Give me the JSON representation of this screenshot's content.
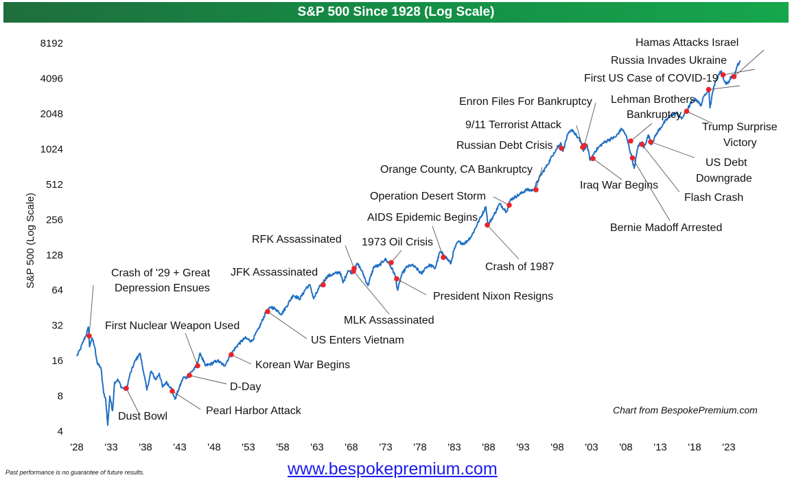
{
  "header": {
    "title": "S&P 500 Since 1928 (Log Scale)"
  },
  "footer": {
    "disclaimer": "Past performance is no guarantee of future results.",
    "url": "www.bespokepremium.com",
    "source": "Chart from BespokePremium.com"
  },
  "colors": {
    "line": "#1f6fc4",
    "marker": "#e8262b",
    "header_start": "#1f6e3c",
    "header_end": "#16a64c",
    "url": "#1a1aee"
  },
  "chart_data": {
    "type": "line",
    "title": "S&P 500 Since 1928 (Log Scale)",
    "xlabel": "",
    "ylabel": "S&P 500 (Log Scale)",
    "y_scale": "log2",
    "ylim": [
      4,
      8192
    ],
    "xlim": [
      1928,
      2024.7
    ],
    "y_ticks": [
      4,
      8,
      16,
      32,
      64,
      128,
      256,
      512,
      1024,
      2048,
      4096,
      8192
    ],
    "x_ticks": [
      {
        "year": 1928,
        "label": "'28"
      },
      {
        "year": 1933,
        "label": "'33"
      },
      {
        "year": 1938,
        "label": "'38"
      },
      {
        "year": 1943,
        "label": "'43"
      },
      {
        "year": 1948,
        "label": "'48"
      },
      {
        "year": 1953,
        "label": "'53"
      },
      {
        "year": 1958,
        "label": "'58"
      },
      {
        "year": 1963,
        "label": "'63"
      },
      {
        "year": 1968,
        "label": "'68"
      },
      {
        "year": 1973,
        "label": "'73"
      },
      {
        "year": 1978,
        "label": "'78"
      },
      {
        "year": 1983,
        "label": "'83"
      },
      {
        "year": 1988,
        "label": "'88"
      },
      {
        "year": 1993,
        "label": "'93"
      },
      {
        "year": 1998,
        "label": "'98"
      },
      {
        "year": 2003,
        "label": "'03"
      },
      {
        "year": 2008,
        "label": "'08"
      },
      {
        "year": 2013,
        "label": "'13"
      },
      {
        "year": 2018,
        "label": "'18"
      },
      {
        "year": 2023,
        "label": "'23"
      }
    ],
    "grid": false,
    "series": [
      {
        "name": "S&P 500",
        "points": [
          [
            1928.0,
            17.5
          ],
          [
            1928.5,
            20
          ],
          [
            1929.0,
            24
          ],
          [
            1929.3,
            26
          ],
          [
            1929.7,
            31
          ],
          [
            1929.85,
            21
          ],
          [
            1930.2,
            25
          ],
          [
            1930.6,
            21
          ],
          [
            1931.0,
            15
          ],
          [
            1931.5,
            14
          ],
          [
            1931.9,
            8.5
          ],
          [
            1932.2,
            7.5
          ],
          [
            1932.5,
            4.5
          ],
          [
            1932.8,
            8
          ],
          [
            1933.2,
            6
          ],
          [
            1933.5,
            10.5
          ],
          [
            1934.0,
            11
          ],
          [
            1934.5,
            9.5
          ],
          [
            1935.2,
            9
          ],
          [
            1935.7,
            12
          ],
          [
            1936.5,
            16
          ],
          [
            1937.2,
            18.5
          ],
          [
            1937.7,
            13
          ],
          [
            1938.2,
            9
          ],
          [
            1938.8,
            13
          ],
          [
            1939.5,
            11
          ],
          [
            1940.0,
            12.5
          ],
          [
            1940.5,
            9.5
          ],
          [
            1941.0,
            10.5
          ],
          [
            1941.7,
            9.5
          ],
          [
            1942.3,
            7.5
          ],
          [
            1942.8,
            9
          ],
          [
            1943.5,
            11.5
          ],
          [
            1944.0,
            11.5
          ],
          [
            1944.5,
            12.5
          ],
          [
            1945.3,
            14
          ],
          [
            1946.0,
            18.5
          ],
          [
            1946.7,
            14.5
          ],
          [
            1947.5,
            15
          ],
          [
            1948.5,
            16
          ],
          [
            1949.5,
            14.5
          ],
          [
            1950.3,
            17.5
          ],
          [
            1950.8,
            19.5
          ],
          [
            1951.5,
            22
          ],
          [
            1952.5,
            25
          ],
          [
            1953.5,
            23.5
          ],
          [
            1954.5,
            30
          ],
          [
            1955.5,
            41
          ],
          [
            1956.3,
            46
          ],
          [
            1957.0,
            44
          ],
          [
            1957.8,
            40
          ],
          [
            1958.5,
            46
          ],
          [
            1959.5,
            58
          ],
          [
            1960.5,
            54
          ],
          [
            1961.5,
            68
          ],
          [
            1962.0,
            70
          ],
          [
            1962.5,
            54
          ],
          [
            1963.5,
            70
          ],
          [
            1964.5,
            84
          ],
          [
            1965.5,
            88
          ],
          [
            1966.3,
            92
          ],
          [
            1966.8,
            74
          ],
          [
            1967.5,
            94
          ],
          [
            1968.2,
            90
          ],
          [
            1968.9,
            108
          ],
          [
            1969.5,
            94
          ],
          [
            1970.4,
            70
          ],
          [
            1971.3,
            102
          ],
          [
            1972.0,
            103
          ],
          [
            1972.9,
            118
          ],
          [
            1973.5,
            108
          ],
          [
            1974.3,
            88
          ],
          [
            1974.75,
            64
          ],
          [
            1975.3,
            86
          ],
          [
            1976.0,
            100
          ],
          [
            1976.8,
            105
          ],
          [
            1977.5,
            98
          ],
          [
            1978.2,
            88
          ],
          [
            1978.8,
            100
          ],
          [
            1979.5,
            105
          ],
          [
            1980.2,
            98
          ],
          [
            1980.9,
            136
          ],
          [
            1981.5,
            128
          ],
          [
            1982.5,
            108
          ],
          [
            1982.9,
            138
          ],
          [
            1983.5,
            165
          ],
          [
            1984.5,
            160
          ],
          [
            1985.5,
            185
          ],
          [
            1986.5,
            245
          ],
          [
            1987.6,
            330
          ],
          [
            1987.9,
            230
          ],
          [
            1988.7,
            275
          ],
          [
            1989.6,
            350
          ],
          [
            1990.6,
            300
          ],
          [
            1991.2,
            380
          ],
          [
            1992.5,
            420
          ],
          [
            1993.5,
            460
          ],
          [
            1994.5,
            455
          ],
          [
            1995.5,
            600
          ],
          [
            1996.5,
            740
          ],
          [
            1997.5,
            950
          ],
          [
            1998.5,
            1160
          ],
          [
            1998.8,
            980
          ],
          [
            1999.5,
            1350
          ],
          [
            2000.2,
            1500
          ],
          [
            2000.8,
            1330
          ],
          [
            2001.5,
            1160
          ],
          [
            2001.8,
            980
          ],
          [
            2002.3,
            1120
          ],
          [
            2002.8,
            820
          ],
          [
            2003.5,
            980
          ],
          [
            2004.5,
            1130
          ],
          [
            2005.5,
            1230
          ],
          [
            2006.5,
            1300
          ],
          [
            2007.4,
            1530
          ],
          [
            2008.0,
            1350
          ],
          [
            2008.9,
            850
          ],
          [
            2009.2,
            700
          ],
          [
            2009.8,
            1100
          ],
          [
            2010.4,
            1180
          ],
          [
            2010.6,
            1050
          ],
          [
            2011.3,
            1350
          ],
          [
            2011.7,
            1120
          ],
          [
            2012.5,
            1400
          ],
          [
            2013.5,
            1700
          ],
          [
            2014.5,
            1980
          ],
          [
            2015.5,
            2080
          ],
          [
            2016.1,
            1850
          ],
          [
            2016.9,
            2200
          ],
          [
            2017.8,
            2700
          ],
          [
            2018.3,
            2700
          ],
          [
            2018.9,
            2400
          ],
          [
            2019.5,
            3000
          ],
          [
            2020.1,
            3350
          ],
          [
            2020.25,
            2300
          ],
          [
            2020.8,
            3500
          ],
          [
            2021.5,
            4400
          ],
          [
            2021.9,
            4750
          ],
          [
            2022.4,
            3800
          ],
          [
            2022.8,
            3700
          ],
          [
            2023.4,
            4300
          ],
          [
            2023.8,
            4250
          ],
          [
            2024.2,
            5200
          ],
          [
            2024.7,
            5800
          ]
        ]
      }
    ],
    "events": [
      {
        "label": "Crash of '29 + Great Depression Ensues",
        "year": 1929.8,
        "value": 26
      },
      {
        "label": "Dust Bowl",
        "year": 1935.2,
        "value": 9.3
      },
      {
        "label": "First Nuclear Weapon Used",
        "year": 1945.6,
        "value": 14.5
      },
      {
        "label": "D-Day",
        "year": 1944.4,
        "value": 12
      },
      {
        "label": "Pearl Harbor Attack",
        "year": 1941.9,
        "value": 8.8
      },
      {
        "label": "Korean War Begins",
        "year": 1950.5,
        "value": 18
      },
      {
        "label": "US Enters Vietnam",
        "year": 1955.8,
        "value": 42
      },
      {
        "label": "JFK Assassinated",
        "year": 1963.9,
        "value": 71
      },
      {
        "label": "RFK Assassinated",
        "year": 1968.4,
        "value": 98
      },
      {
        "label": "MLK Assassinated",
        "year": 1968.3,
        "value": 93
      },
      {
        "label": "1973 Oil Crisis",
        "year": 1973.8,
        "value": 110
      },
      {
        "label": "President Nixon Resigns",
        "year": 1974.6,
        "value": 80
      },
      {
        "label": "AIDS Epidemic Begins",
        "year": 1981.4,
        "value": 122
      },
      {
        "label": "Crash of 1987",
        "year": 1987.8,
        "value": 230
      },
      {
        "label": "Operation Desert Storm",
        "year": 1991.0,
        "value": 340
      },
      {
        "label": "Orange County, CA Bankruptcy",
        "year": 1994.9,
        "value": 460
      },
      {
        "label": "Russian Debt Crisis",
        "year": 1998.6,
        "value": 1040
      },
      {
        "label": "9/11 Terrorist Attack",
        "year": 2001.7,
        "value": 1060
      },
      {
        "label": "Enron Files For Bankruptcy",
        "year": 2001.95,
        "value": 1100
      },
      {
        "label": "Iraq War Begins",
        "year": 2003.2,
        "value": 850
      },
      {
        "label": "Lehman Brothers Bankruptcy",
        "year": 2008.7,
        "value": 1200
      },
      {
        "label": "Bernie Madoff Arrested",
        "year": 2008.95,
        "value": 860
      },
      {
        "label": "Flash Crash",
        "year": 2010.35,
        "value": 1120
      },
      {
        "label": "US Debt Downgrade",
        "year": 2011.6,
        "value": 1180
      },
      {
        "label": "Trump Surprise Victory",
        "year": 2016.85,
        "value": 2150
      },
      {
        "label": "First US Case of COVID-19",
        "year": 2020.05,
        "value": 3300
      },
      {
        "label": "Russia Invades Ukraine",
        "year": 2022.15,
        "value": 4400
      },
      {
        "label": "Hamas Attacks Israel",
        "year": 2023.75,
        "value": 4250
      }
    ]
  }
}
